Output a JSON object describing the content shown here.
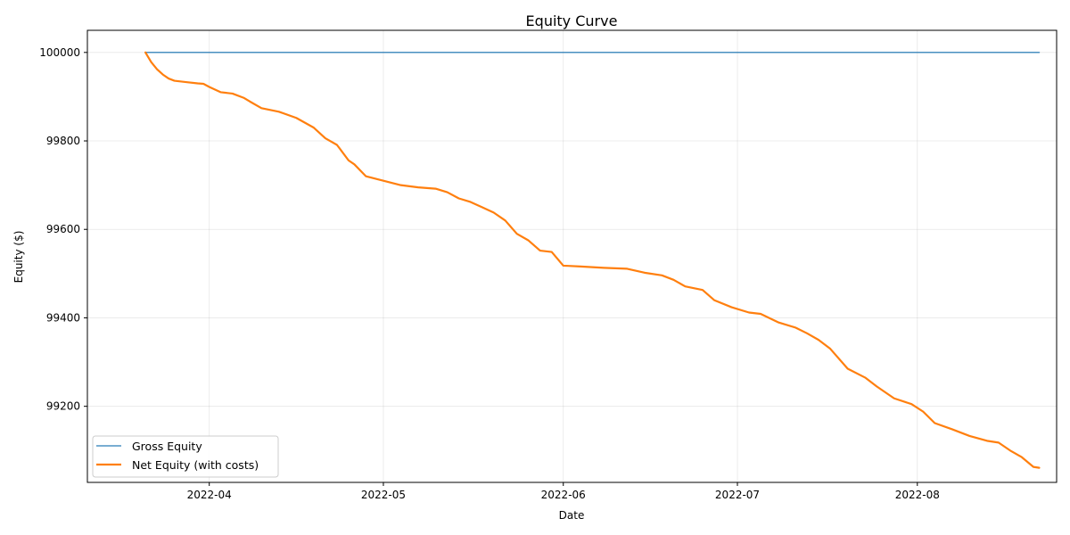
{
  "chart_data": {
    "type": "line",
    "title": "Equity Curve",
    "xlabel": "Date",
    "ylabel": "Equity ($)",
    "xlim": [
      "2022-03-11",
      "2022-08-25"
    ],
    "ylim": [
      99028,
      100050
    ],
    "x_ticks": [
      "2022-04",
      "2022-05",
      "2022-06",
      "2022-07",
      "2022-08"
    ],
    "y_ticks": [
      99200,
      99400,
      99600,
      99800,
      100000
    ],
    "grid": true,
    "legend_position": "lower-left",
    "series": [
      {
        "name": "Gross Equity",
        "color": "#1f77b4",
        "x": [
          "2022-03-21",
          "2022-08-22"
        ],
        "y": [
          100000,
          100000
        ]
      },
      {
        "name": "Net Equity (with costs)",
        "color": "#ff7f0e",
        "x": [
          "2022-03-21",
          "2022-03-22",
          "2022-03-23",
          "2022-03-24",
          "2022-03-25",
          "2022-03-26",
          "2022-03-28",
          "2022-03-30",
          "2022-03-31",
          "2022-04-01",
          "2022-04-03",
          "2022-04-05",
          "2022-04-07",
          "2022-04-08",
          "2022-04-10",
          "2022-04-13",
          "2022-04-16",
          "2022-04-19",
          "2022-04-21",
          "2022-04-23",
          "2022-04-25",
          "2022-04-26",
          "2022-04-28",
          "2022-05-01",
          "2022-05-04",
          "2022-05-07",
          "2022-05-10",
          "2022-05-12",
          "2022-05-14",
          "2022-05-16",
          "2022-05-18",
          "2022-05-20",
          "2022-05-22",
          "2022-05-24",
          "2022-05-26",
          "2022-05-28",
          "2022-05-30",
          "2022-06-01",
          "2022-06-04",
          "2022-06-08",
          "2022-06-12",
          "2022-06-15",
          "2022-06-18",
          "2022-06-20",
          "2022-06-22",
          "2022-06-25",
          "2022-06-27",
          "2022-06-30",
          "2022-07-03",
          "2022-07-05",
          "2022-07-08",
          "2022-07-11",
          "2022-07-13",
          "2022-07-15",
          "2022-07-17",
          "2022-07-20",
          "2022-07-23",
          "2022-07-25",
          "2022-07-28",
          "2022-07-31",
          "2022-08-02",
          "2022-08-04",
          "2022-08-07",
          "2022-08-10",
          "2022-08-13",
          "2022-08-15",
          "2022-08-17",
          "2022-08-19",
          "2022-08-21",
          "2022-08-22"
        ],
        "y": [
          100000,
          99978,
          99962,
          99950,
          99941,
          99936,
          99933,
          99930,
          99929,
          99922,
          99910,
          99907,
          99897,
          99889,
          99874,
          99866,
          99852,
          99830,
          99806,
          99791,
          99756,
          99747,
          99720,
          99710,
          99700,
          99695,
          99692,
          99684,
          99670,
          99662,
          99650,
          99638,
          99620,
          99590,
          99575,
          99552,
          99549,
          99518,
          99516,
          99513,
          99511,
          99502,
          99496,
          99486,
          99471,
          99463,
          99440,
          99424,
          99412,
          99409,
          99390,
          99378,
          99365,
          99350,
          99330,
          99285,
          99265,
          99245,
          99218,
          99205,
          99188,
          99162,
          99148,
          99133,
          99122,
          99118,
          99100,
          99085,
          99063,
          99061
        ]
      }
    ]
  }
}
